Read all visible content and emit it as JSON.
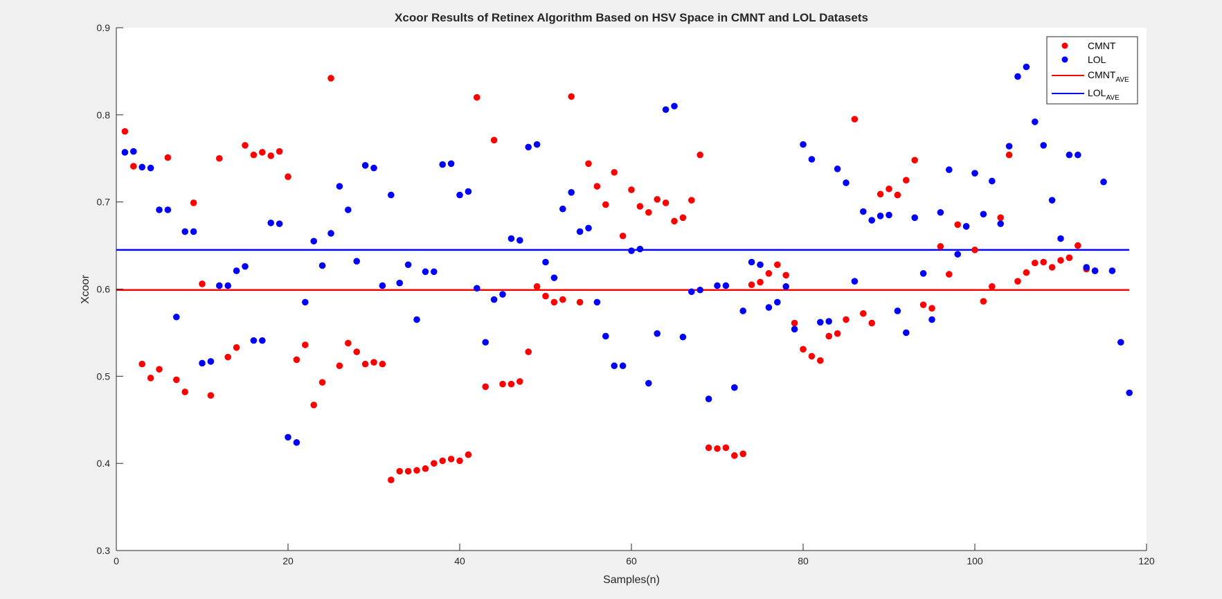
{
  "figure_background": "#f0f0f0",
  "chart_data": {
    "type": "scatter",
    "title": "Xcoor Results of Retinex Algorithm Based on HSV Space in CMNT and LOL Datasets",
    "xlabel": "Samples(n)",
    "ylabel": "Xcoor",
    "xlim": [
      0,
      120
    ],
    "ylim": [
      0.3,
      0.9
    ],
    "xticks": [
      "0",
      "20",
      "40",
      "60",
      "80",
      "100",
      "120"
    ],
    "yticks": [
      "0.3",
      "0.4",
      "0.5",
      "0.6",
      "0.7",
      "0.8",
      "0.9"
    ],
    "grid": false,
    "legend_position": "top-right",
    "series": [
      {
        "name": "CMNT",
        "color": "#ff0000",
        "values": [
          0.781,
          0.741,
          0.514,
          0.498,
          0.508,
          0.751,
          0.496,
          0.482,
          0.699,
          0.606,
          0.478,
          0.75,
          0.522,
          0.533,
          0.765,
          0.754,
          0.757,
          0.753,
          0.758,
          0.729,
          0.519,
          0.536,
          0.467,
          0.493,
          0.842,
          0.512,
          0.538,
          0.528,
          0.514,
          0.516,
          0.514,
          0.381,
          0.391,
          0.391,
          0.392,
          0.394,
          0.4,
          0.403,
          0.405,
          0.403,
          0.41,
          0.82,
          0.488,
          0.771,
          0.491,
          0.491,
          0.494,
          0.528,
          0.603,
          0.592,
          0.585,
          0.588,
          0.821,
          0.585,
          0.744,
          0.718,
          0.697,
          0.734,
          0.661,
          0.714,
          0.695,
          0.688,
          0.703,
          0.699,
          0.678,
          0.682,
          0.702,
          0.754,
          0.418,
          0.417,
          0.418,
          0.409,
          0.411,
          0.605,
          0.608,
          0.618,
          0.628,
          0.616,
          0.561,
          0.531,
          0.523,
          0.518,
          0.546,
          0.549,
          0.565,
          0.795,
          0.572,
          0.561,
          0.709,
          0.715,
          0.708,
          0.725,
          0.748,
          0.582,
          0.578,
          0.649,
          0.617,
          0.674,
          0.672,
          0.645,
          0.586,
          0.603,
          0.682,
          0.754,
          0.609,
          0.619,
          0.63,
          0.631,
          0.625,
          0.633,
          0.636,
          0.65,
          0.623,
          0.621
        ]
      },
      {
        "name": "LOL",
        "color": "#0000ff",
        "values": [
          0.757,
          0.758,
          0.74,
          0.739,
          0.691,
          0.691,
          0.568,
          0.666,
          0.666,
          0.515,
          0.517,
          0.604,
          0.604,
          0.621,
          0.626,
          0.541,
          0.541,
          0.676,
          0.675,
          0.43,
          0.424,
          0.585,
          0.655,
          0.627,
          0.664,
          0.718,
          0.691,
          0.632,
          0.742,
          0.739,
          0.604,
          0.708,
          0.607,
          0.628,
          0.565,
          0.62,
          0.62,
          0.743,
          0.744,
          0.708,
          0.712,
          0.601,
          0.539,
          0.588,
          0.594,
          0.658,
          0.656,
          0.763,
          0.766,
          0.631,
          0.613,
          0.692,
          0.711,
          0.666,
          0.67,
          0.585,
          0.546,
          0.512,
          0.512,
          0.644,
          0.646,
          0.492,
          0.549,
          0.806,
          0.81,
          0.545,
          0.597,
          0.599,
          0.474,
          0.604,
          0.604,
          0.487,
          0.575,
          0.631,
          0.628,
          0.579,
          0.585,
          0.603,
          0.554,
          0.766,
          0.749,
          0.562,
          0.563,
          0.738,
          0.722,
          0.609,
          0.689,
          0.679,
          0.684,
          0.685,
          0.575,
          0.55,
          0.682,
          0.618,
          0.565,
          0.688,
          0.737,
          0.64,
          0.672,
          0.733,
          0.686,
          0.724,
          0.675,
          0.764,
          0.844,
          0.855,
          0.792,
          0.765,
          0.702,
          0.658,
          0.754,
          0.754,
          0.625,
          0.621,
          0.723,
          0.621,
          0.539,
          0.481
        ]
      }
    ],
    "averages": [
      {
        "name": "CMNT",
        "sub": "AVE",
        "value": 0.599,
        "color": "#ff0000"
      },
      {
        "name": "LOL",
        "sub": "AVE",
        "value": 0.645,
        "color": "#0000ff"
      }
    ]
  }
}
